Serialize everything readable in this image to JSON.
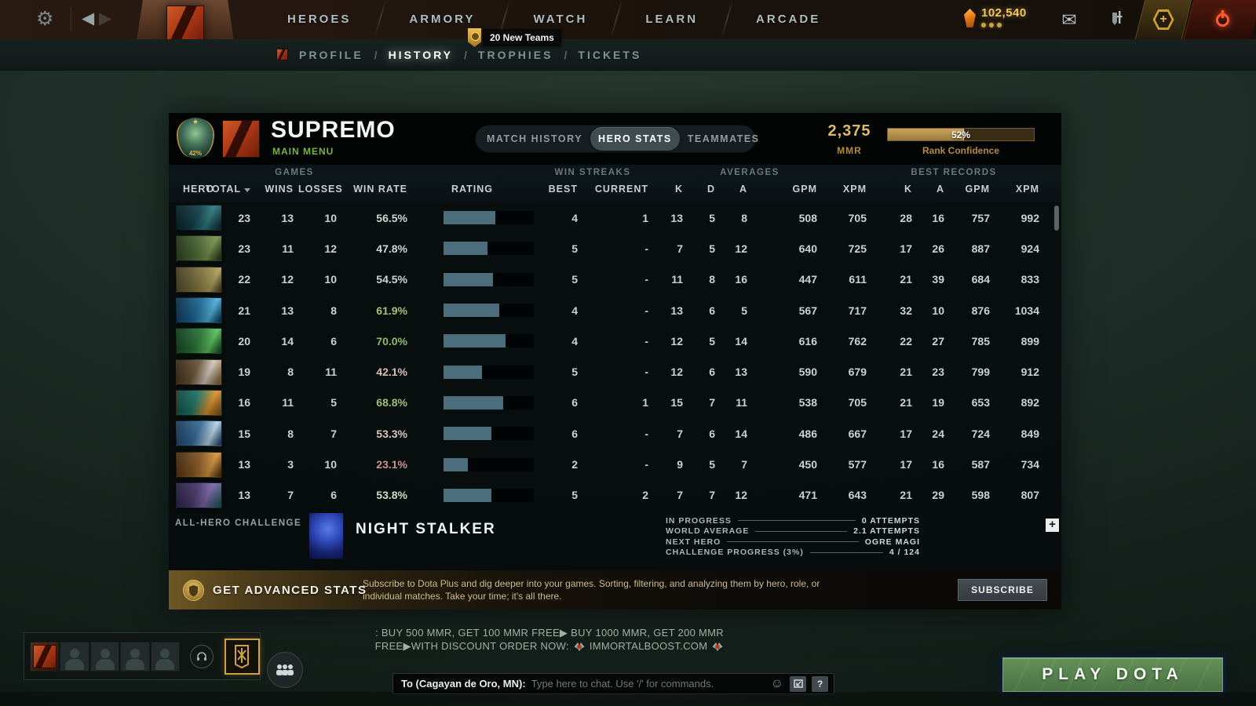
{
  "icons": {
    "gear": "⚙",
    "back": "◀",
    "forward": "▶",
    "mail": "✉",
    "smiley": "☺",
    "medal_star": "★",
    "plus": "+",
    "banner_shield": "⛨"
  },
  "top_nav": {
    "items": [
      "HEROES",
      "ARMORY",
      "WATCH",
      "LEARN",
      "ARCADE"
    ],
    "teams_badge": "20 New Teams",
    "currency": "102,540"
  },
  "sub_nav": {
    "separator": "/",
    "items": [
      "PROFILE",
      "HISTORY",
      "TROPHIES",
      "TICKETS"
    ]
  },
  "profile": {
    "name": "SUPREMO",
    "status": "MAIN MENU",
    "medal_pct": "42%",
    "mmr_value": "2,375",
    "mmr_label": "MMR",
    "rank_confidence_value": "52%",
    "rank_confidence_label": "Rank Confidence"
  },
  "tabs": {
    "match_history": "MATCH HISTORY",
    "hero_stats": "HERO STATS",
    "teammates": "TEAMMATES"
  },
  "table": {
    "groups": {
      "games": "GAMES",
      "win_streaks": "WIN STREAKS",
      "averages": "AVERAGES",
      "best_records": "BEST RECORDS"
    },
    "columns": {
      "hero": "HERO",
      "total": "TOTAL",
      "wins": "WINS",
      "losses": "LOSSES",
      "win_rate": "WIN RATE",
      "rating": "RATING",
      "best": "BEST",
      "current": "CURRENT",
      "k": "K",
      "d": "D",
      "a": "A",
      "gpm": "GPM",
      "xpm": "XPM",
      "k2": "K",
      "a2": "A",
      "gpm2": "GPM",
      "xpm2": "XPM"
    },
    "rows": [
      {
        "hero": "outworld-destroyer",
        "total": "23",
        "wins": "13",
        "losses": "10",
        "win_rate": "56.5%",
        "win_rate_color": "#cdd6d2",
        "rating_pct": 57,
        "best": "4",
        "current": "1",
        "k": "13",
        "d": "5",
        "a": "8",
        "gpm": "508",
        "xpm": "705",
        "best_k": "28",
        "best_a": "16",
        "best_gpm": "757",
        "best_xpm": "992"
      },
      {
        "hero": "medusa",
        "total": "23",
        "wins": "11",
        "losses": "12",
        "win_rate": "47.8%",
        "win_rate_color": "#cdd6d2",
        "rating_pct": 49,
        "best": "5",
        "current": "-",
        "k": "7",
        "d": "5",
        "a": "12",
        "gpm": "640",
        "xpm": "725",
        "best_k": "17",
        "best_a": "26",
        "best_gpm": "887",
        "best_xpm": "924"
      },
      {
        "hero": "pudge",
        "total": "22",
        "wins": "12",
        "losses": "10",
        "win_rate": "54.5%",
        "win_rate_color": "#cdd6d2",
        "rating_pct": 55,
        "best": "5",
        "current": "-",
        "k": "11",
        "d": "8",
        "a": "16",
        "gpm": "447",
        "xpm": "611",
        "best_k": "21",
        "best_a": "39",
        "best_gpm": "684",
        "best_xpm": "833"
      },
      {
        "hero": "morphling",
        "total": "21",
        "wins": "13",
        "losses": "8",
        "win_rate": "61.9%",
        "win_rate_color": "#a6c078",
        "rating_pct": 62,
        "best": "4",
        "current": "-",
        "k": "13",
        "d": "6",
        "a": "5",
        "gpm": "567",
        "xpm": "717",
        "best_k": "32",
        "best_a": "10",
        "best_gpm": "876",
        "best_xpm": "1034"
      },
      {
        "hero": "rubick",
        "total": "20",
        "wins": "14",
        "losses": "6",
        "win_rate": "70.0%",
        "win_rate_color": "#8fba6d",
        "rating_pct": 69,
        "best": "4",
        "current": "-",
        "k": "12",
        "d": "5",
        "a": "14",
        "gpm": "616",
        "xpm": "762",
        "best_k": "22",
        "best_a": "27",
        "best_gpm": "785",
        "best_xpm": "899"
      },
      {
        "hero": "sniper",
        "total": "19",
        "wins": "8",
        "losses": "11",
        "win_rate": "42.1%",
        "win_rate_color": "#d8c0ba",
        "rating_pct": 43,
        "best": "5",
        "current": "-",
        "k": "12",
        "d": "6",
        "a": "13",
        "gpm": "590",
        "xpm": "679",
        "best_k": "21",
        "best_a": "23",
        "best_gpm": "799",
        "best_xpm": "912"
      },
      {
        "hero": "bounty-hunter",
        "total": "16",
        "wins": "11",
        "losses": "5",
        "win_rate": "68.8%",
        "win_rate_color": "#9dbf78",
        "rating_pct": 66,
        "best": "6",
        "current": "1",
        "k": "15",
        "d": "7",
        "a": "11",
        "gpm": "538",
        "xpm": "705",
        "best_k": "21",
        "best_a": "19",
        "best_gpm": "653",
        "best_xpm": "892"
      },
      {
        "hero": "tusk",
        "total": "15",
        "wins": "8",
        "losses": "7",
        "win_rate": "53.3%",
        "win_rate_color": "#d8c6c0",
        "rating_pct": 53,
        "best": "6",
        "current": "-",
        "k": "7",
        "d": "6",
        "a": "14",
        "gpm": "486",
        "xpm": "667",
        "best_k": "17",
        "best_a": "24",
        "best_gpm": "724",
        "best_xpm": "849"
      },
      {
        "hero": "techies",
        "total": "13",
        "wins": "3",
        "losses": "10",
        "win_rate": "23.1%",
        "win_rate_color": "#c99294",
        "rating_pct": 27,
        "best": "2",
        "current": "-",
        "k": "9",
        "d": "5",
        "a": "7",
        "gpm": "450",
        "xpm": "577",
        "best_k": "17",
        "best_a": "16",
        "best_gpm": "587",
        "best_xpm": "734"
      },
      {
        "hero": "tinker",
        "total": "13",
        "wins": "7",
        "losses": "6",
        "win_rate": "53.8%",
        "win_rate_color": "#cfdcc8",
        "rating_pct": 53,
        "best": "5",
        "current": "2",
        "k": "7",
        "d": "7",
        "a": "12",
        "gpm": "471",
        "xpm": "643",
        "best_k": "21",
        "best_a": "29",
        "best_gpm": "598",
        "best_xpm": "807"
      }
    ]
  },
  "challenge": {
    "section_label": "ALL-HERO CHALLENGE",
    "hero_name": "NIGHT STALKER",
    "stats": [
      {
        "label": "IN PROGRESS",
        "value": "0 ATTEMPTS"
      },
      {
        "label": "WORLD AVERAGE",
        "value": "2.1 ATTEMPTS"
      },
      {
        "label": "NEXT HERO",
        "value": "OGRE MAGI"
      },
      {
        "label": "CHALLENGE PROGRESS (3%)",
        "value": "4 / 124"
      }
    ],
    "add_button": "+"
  },
  "banner": {
    "title": "GET ADVANCED STATS",
    "desc_line1": "Subscribe to Dota Plus and dig deeper into your games. Sorting, filtering, and analyzing them by hero, role, or",
    "desc_line2": "individual matches. Take your time; it's all there.",
    "button": "SUBSCRIBE"
  },
  "footer": {
    "ad_line1": ": BUY 500 MMR, GET 100 MMR FREE▶ BUY 1000 MMR, GET 200 MMR",
    "ad_line2_prefix": "FREE▶WITH DISCOUNT ORDER NOW:",
    "ad_domain": "IMMORTALBOOST.COM",
    "chat_to": "To (Cagayan de Oro, MN):",
    "chat_placeholder": "Type here to chat. Use '/' for commands.",
    "help_button": "?",
    "play_button": "PLAY DOTA"
  },
  "colors": {
    "accent_gold": "#c9a24a",
    "accent_green": "#76b33f",
    "rating_bar_fill": "#4b6d7c",
    "play_green": "#558050"
  }
}
